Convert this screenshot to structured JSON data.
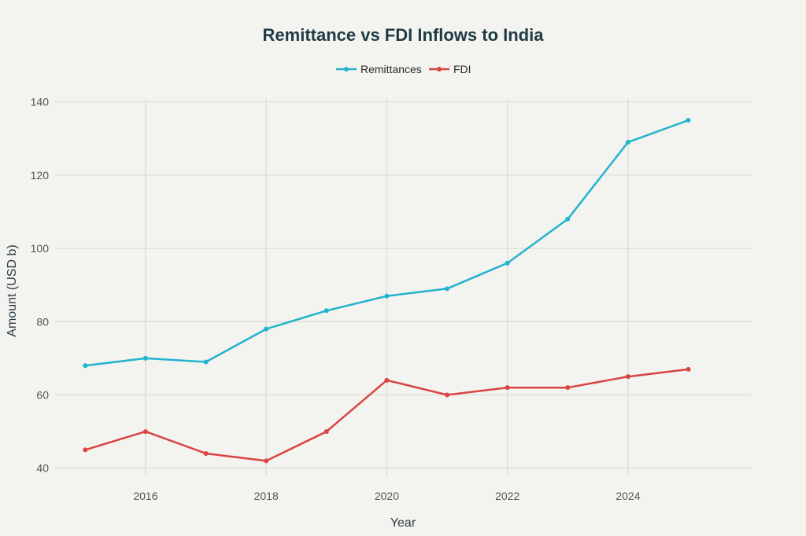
{
  "chart_data": {
    "type": "line",
    "title": "Remittance vs FDI Inflows to India",
    "xlabel": "Year",
    "ylabel": "Amount (USD b)",
    "x": [
      2015,
      2016,
      2017,
      2018,
      2019,
      2020,
      2021,
      2022,
      2023,
      2024,
      2025
    ],
    "series": [
      {
        "name": "Remittances",
        "color": "#22b3cf",
        "values": [
          68,
          70,
          69,
          78,
          83,
          87,
          89,
          96,
          108,
          129,
          135
        ]
      },
      {
        "name": "FDI",
        "color": "#d94444",
        "values": [
          45,
          50,
          44,
          42,
          50,
          64,
          60,
          62,
          62,
          65,
          67
        ]
      }
    ],
    "xlim": [
      2014.5,
      2026.05
    ],
    "ylim": [
      38,
      141
    ],
    "xticks": [
      2016,
      2018,
      2020,
      2022,
      2024
    ],
    "yticks": [
      40,
      60,
      80,
      100,
      120,
      140
    ],
    "grid": true,
    "legend_position": "top-center"
  }
}
